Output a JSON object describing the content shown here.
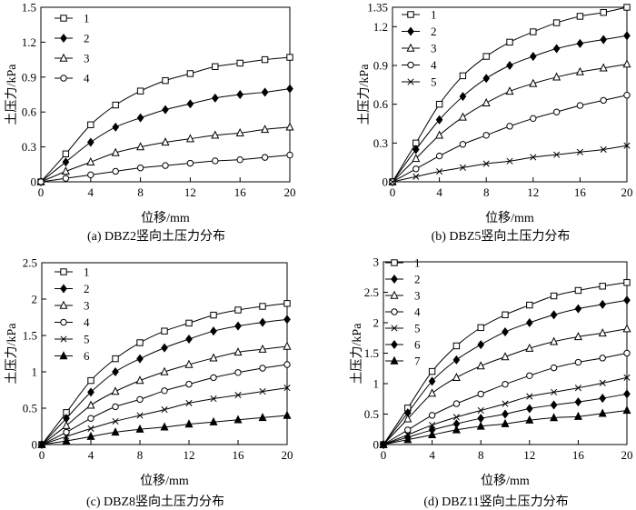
{
  "chart_data": [
    {
      "type": "line",
      "caption": "(a) DBZ2竖向土压力分布",
      "xlabel": "位移/mm",
      "ylabel": "土压力/kPa",
      "xlim": [
        0,
        20
      ],
      "ylim": [
        0,
        1.5
      ],
      "xticks": [
        0,
        4,
        8,
        12,
        16,
        20
      ],
      "yticks": [
        0,
        0.3,
        0.6,
        0.9,
        1.2,
        1.5
      ],
      "ytick_labels": [
        "0",
        "0.3",
        "0.6",
        "0.9",
        "1.2",
        "1.5"
      ],
      "legend_position": "top-left",
      "grid": false,
      "series": [
        {
          "name": "1",
          "marker": "square",
          "x": [
            0,
            2,
            4,
            6,
            8,
            10,
            12,
            14,
            16,
            18,
            20
          ],
          "y": [
            0,
            0.24,
            0.49,
            0.66,
            0.78,
            0.87,
            0.93,
            0.99,
            1.02,
            1.05,
            1.07
          ]
        },
        {
          "name": "2",
          "marker": "diamond",
          "x": [
            0,
            2,
            4,
            6,
            8,
            10,
            12,
            14,
            16,
            18,
            20
          ],
          "y": [
            0,
            0.17,
            0.34,
            0.47,
            0.55,
            0.62,
            0.67,
            0.72,
            0.75,
            0.77,
            0.8
          ]
        },
        {
          "name": "3",
          "marker": "triangle",
          "x": [
            0,
            2,
            4,
            6,
            8,
            10,
            12,
            14,
            16,
            18,
            20
          ],
          "y": [
            0,
            0.09,
            0.17,
            0.25,
            0.3,
            0.34,
            0.37,
            0.4,
            0.42,
            0.45,
            0.47
          ]
        },
        {
          "name": "4",
          "marker": "circle",
          "x": [
            0,
            2,
            4,
            6,
            8,
            10,
            12,
            14,
            16,
            18,
            20
          ],
          "y": [
            0,
            0.03,
            0.06,
            0.09,
            0.12,
            0.14,
            0.16,
            0.18,
            0.19,
            0.21,
            0.23
          ]
        }
      ]
    },
    {
      "type": "line",
      "caption": "(b) DBZ5竖向土压力分布",
      "xlabel": "位移/mm",
      "ylabel": "土压力/kPa",
      "xlim": [
        0,
        20
      ],
      "ylim": [
        0,
        1.35
      ],
      "xticks": [
        0,
        4,
        8,
        12,
        16,
        20
      ],
      "yticks": [
        0,
        0.3,
        0.6,
        0.9,
        1.2,
        1.35
      ],
      "ytick_labels": [
        "0",
        "0.3",
        "0.6",
        "0.9",
        "1.2",
        "1.35"
      ],
      "legend_position": "top-left",
      "grid": false,
      "series": [
        {
          "name": "1",
          "marker": "square",
          "x": [
            0,
            2,
            4,
            6,
            8,
            10,
            12,
            14,
            16,
            18,
            20
          ],
          "y": [
            0,
            0.3,
            0.6,
            0.82,
            0.97,
            1.08,
            1.16,
            1.23,
            1.28,
            1.31,
            1.35
          ]
        },
        {
          "name": "2",
          "marker": "diamond",
          "x": [
            0,
            2,
            4,
            6,
            8,
            10,
            12,
            14,
            16,
            18,
            20
          ],
          "y": [
            0,
            0.25,
            0.48,
            0.66,
            0.8,
            0.9,
            0.97,
            1.03,
            1.07,
            1.1,
            1.13
          ]
        },
        {
          "name": "3",
          "marker": "triangle",
          "x": [
            0,
            2,
            4,
            6,
            8,
            10,
            12,
            14,
            16,
            18,
            20
          ],
          "y": [
            0,
            0.18,
            0.36,
            0.5,
            0.61,
            0.7,
            0.76,
            0.81,
            0.85,
            0.88,
            0.91
          ]
        },
        {
          "name": "4",
          "marker": "circle",
          "x": [
            0,
            2,
            4,
            6,
            8,
            10,
            12,
            14,
            16,
            18,
            20
          ],
          "y": [
            0,
            0.1,
            0.2,
            0.29,
            0.36,
            0.43,
            0.49,
            0.54,
            0.59,
            0.63,
            0.67
          ]
        },
        {
          "name": "5",
          "marker": "cross",
          "x": [
            0,
            2,
            4,
            6,
            8,
            10,
            12,
            14,
            16,
            18,
            20
          ],
          "y": [
            0,
            0.04,
            0.08,
            0.11,
            0.14,
            0.16,
            0.19,
            0.21,
            0.23,
            0.25,
            0.28
          ]
        }
      ]
    },
    {
      "type": "line",
      "caption": "(c) DBZ8竖向土压力分布",
      "xlabel": "位移/mm",
      "ylabel": "土压力/kPa",
      "xlim": [
        0,
        20
      ],
      "ylim": [
        0,
        2.5
      ],
      "xticks": [
        0,
        4,
        8,
        12,
        16,
        20
      ],
      "yticks": [
        0,
        0.5,
        1,
        1.5,
        2,
        2.5
      ],
      "ytick_labels": [
        "0",
        "0.5",
        "1",
        "1.5",
        "2",
        "2.5"
      ],
      "legend_position": "top-left",
      "grid": false,
      "series": [
        {
          "name": "1",
          "marker": "square",
          "x": [
            0,
            2,
            4,
            6,
            8,
            10,
            12,
            14,
            16,
            18,
            20
          ],
          "y": [
            0,
            0.44,
            0.88,
            1.18,
            1.4,
            1.56,
            1.67,
            1.78,
            1.85,
            1.9,
            1.94
          ]
        },
        {
          "name": "2",
          "marker": "diamond",
          "x": [
            0,
            2,
            4,
            6,
            8,
            10,
            12,
            14,
            16,
            18,
            20
          ],
          "y": [
            0,
            0.36,
            0.72,
            1.0,
            1.18,
            1.33,
            1.45,
            1.56,
            1.63,
            1.68,
            1.72
          ]
        },
        {
          "name": "3",
          "marker": "triangle",
          "x": [
            0,
            2,
            4,
            6,
            8,
            10,
            12,
            14,
            16,
            18,
            20
          ],
          "y": [
            0,
            0.26,
            0.54,
            0.73,
            0.88,
            1.0,
            1.1,
            1.19,
            1.27,
            1.31,
            1.35
          ]
        },
        {
          "name": "4",
          "marker": "circle",
          "x": [
            0,
            2,
            4,
            6,
            8,
            10,
            12,
            14,
            16,
            18,
            20
          ],
          "y": [
            0,
            0.17,
            0.36,
            0.52,
            0.62,
            0.74,
            0.83,
            0.92,
            0.99,
            1.05,
            1.1
          ]
        },
        {
          "name": "5",
          "marker": "cross",
          "x": [
            0,
            2,
            4,
            6,
            8,
            10,
            12,
            14,
            16,
            18,
            20
          ],
          "y": [
            0,
            0.11,
            0.22,
            0.32,
            0.4,
            0.48,
            0.57,
            0.63,
            0.68,
            0.73,
            0.78
          ]
        },
        {
          "name": "6",
          "marker": "filled-triangle",
          "x": [
            0,
            2,
            4,
            6,
            8,
            10,
            12,
            14,
            16,
            18,
            20
          ],
          "y": [
            0,
            0.05,
            0.11,
            0.17,
            0.21,
            0.24,
            0.28,
            0.31,
            0.34,
            0.37,
            0.4
          ]
        }
      ]
    },
    {
      "type": "line",
      "caption": "(d) DBZ11竖向土压力分布",
      "xlabel": "位移/mm",
      "ylabel": "土压力/kPa",
      "xlim": [
        0,
        20
      ],
      "ylim": [
        0,
        3
      ],
      "xticks": [
        0,
        4,
        8,
        12,
        16,
        20
      ],
      "yticks": [
        0,
        0.5,
        1,
        1.5,
        2,
        2.5,
        3
      ],
      "ytick_labels": [
        "0",
        "0.5",
        "1",
        "1.5",
        "2",
        "2.5",
        "3"
      ],
      "legend_position": "top-left",
      "grid": false,
      "series": [
        {
          "name": "1",
          "marker": "square",
          "x": [
            0,
            2,
            4,
            6,
            8,
            10,
            12,
            14,
            16,
            18,
            20
          ],
          "y": [
            0,
            0.6,
            1.2,
            1.62,
            1.92,
            2.13,
            2.29,
            2.44,
            2.53,
            2.6,
            2.66
          ]
        },
        {
          "name": "2",
          "marker": "diamond",
          "x": [
            0,
            2,
            4,
            6,
            8,
            10,
            12,
            14,
            16,
            18,
            20
          ],
          "y": [
            0,
            0.52,
            1.04,
            1.39,
            1.64,
            1.85,
            2.0,
            2.13,
            2.23,
            2.3,
            2.37
          ]
        },
        {
          "name": "3",
          "marker": "triangle",
          "x": [
            0,
            2,
            4,
            6,
            8,
            10,
            12,
            14,
            16,
            18,
            20
          ],
          "y": [
            0,
            0.42,
            0.84,
            1.1,
            1.29,
            1.44,
            1.58,
            1.69,
            1.77,
            1.83,
            1.9
          ]
        },
        {
          "name": "4",
          "marker": "circle",
          "x": [
            0,
            2,
            4,
            6,
            8,
            10,
            12,
            14,
            16,
            18,
            20
          ],
          "y": [
            0,
            0.24,
            0.48,
            0.67,
            0.83,
            0.99,
            1.13,
            1.26,
            1.35,
            1.42,
            1.5
          ]
        },
        {
          "name": "5",
          "marker": "cross",
          "x": [
            0,
            2,
            4,
            6,
            8,
            10,
            12,
            14,
            16,
            18,
            20
          ],
          "y": [
            0,
            0.16,
            0.32,
            0.45,
            0.56,
            0.67,
            0.79,
            0.86,
            0.93,
            1.01,
            1.1
          ]
        },
        {
          "name": "6",
          "marker": "filled-diamond",
          "x": [
            0,
            2,
            4,
            6,
            8,
            10,
            12,
            14,
            16,
            18,
            20
          ],
          "y": [
            0,
            0.12,
            0.24,
            0.34,
            0.43,
            0.5,
            0.59,
            0.65,
            0.7,
            0.76,
            0.83
          ]
        },
        {
          "name": "7",
          "marker": "filled-triangle",
          "x": [
            0,
            2,
            4,
            6,
            8,
            10,
            12,
            14,
            16,
            18,
            20
          ],
          "y": [
            0,
            0.08,
            0.16,
            0.24,
            0.3,
            0.34,
            0.4,
            0.44,
            0.46,
            0.51,
            0.56
          ]
        }
      ]
    }
  ]
}
